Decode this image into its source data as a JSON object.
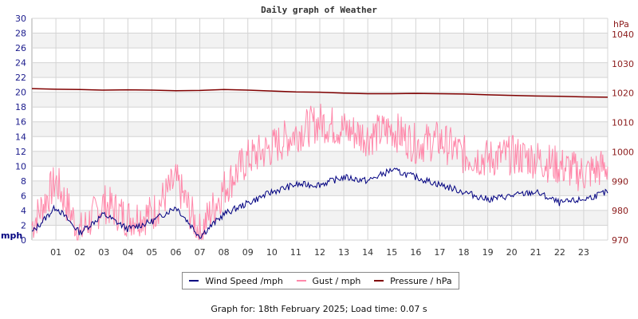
{
  "chart_data": {
    "type": "line",
    "title": "Daily graph of Weather",
    "xlabel": "",
    "ylabel": "mph",
    "ylabel_right": "hPa",
    "ylim": [
      0,
      30
    ],
    "ylim_right": [
      970,
      1045
    ],
    "yticks": [
      0,
      2,
      4,
      6,
      8,
      10,
      12,
      14,
      16,
      18,
      20,
      22,
      24,
      26,
      28,
      30
    ],
    "yticks_right": [
      970,
      980,
      990,
      1000,
      1010,
      1020,
      1030,
      1040
    ],
    "x_tick_labels": [
      "01",
      "02",
      "03",
      "04",
      "05",
      "06",
      "07",
      "08",
      "09",
      "10",
      "11",
      "12",
      "13",
      "14",
      "15",
      "16",
      "17",
      "18",
      "19",
      "20",
      "21",
      "22",
      "23"
    ],
    "grid": true,
    "legend_position": "bottom",
    "x": [
      0,
      1,
      2,
      3,
      4,
      5,
      6,
      7,
      8,
      9,
      10,
      11,
      12,
      13,
      14,
      15,
      16,
      17,
      18,
      19,
      20,
      21,
      22,
      23,
      24
    ],
    "series": [
      {
        "name": "Wind Speed /mph",
        "color": "#000080",
        "axis": "left",
        "values": [
          1.0,
          4.5,
          1.0,
          3.5,
          1.5,
          2.5,
          4.5,
          0.5,
          3.5,
          5.0,
          6.5,
          7.5,
          7.5,
          8.5,
          8.0,
          9.5,
          8.5,
          7.5,
          6.5,
          5.5,
          6.0,
          6.5,
          5.0,
          5.5,
          6.5
        ]
      },
      {
        "name": "Gust / mph",
        "color": "#ff88aa",
        "axis": "left",
        "values": [
          2.0,
          8.0,
          1.0,
          5.0,
          3.0,
          3.5,
          8.0,
          1.0,
          7.0,
          11.0,
          12.5,
          14.5,
          16.0,
          15.0,
          14.0,
          15.0,
          13.0,
          13.5,
          11.5,
          11.0,
          11.5,
          11.0,
          10.0,
          9.0,
          10.0
        ]
      },
      {
        "name": "Pressure / hPa",
        "color": "#800000",
        "axis": "right",
        "values": [
          1021.5,
          1021.3,
          1021.2,
          1021.0,
          1021.1,
          1021.0,
          1020.8,
          1020.9,
          1021.2,
          1021.0,
          1020.7,
          1020.4,
          1020.3,
          1020.0,
          1019.8,
          1019.8,
          1019.9,
          1019.8,
          1019.7,
          1019.4,
          1019.2,
          1019.0,
          1018.9,
          1018.7,
          1018.6
        ]
      }
    ]
  },
  "header": {
    "title": "Daily graph of Weather"
  },
  "axes": {
    "left_unit": "mph",
    "right_unit": "hPa"
  },
  "legend": {
    "items": [
      {
        "label": "Wind Speed /mph",
        "color": "#000080"
      },
      {
        "label": "Gust / mph",
        "color": "#ff88aa"
      },
      {
        "label": "Pressure / hPa",
        "color": "#800000"
      }
    ]
  },
  "footer": {
    "text": "Graph for: 18th February 2025; Load time: 0.07 s"
  },
  "colors": {
    "left_axis_text": "#1a1a8c",
    "right_axis_text": "#8b1a1a",
    "x_axis_text": "#333333",
    "band_gray": "#f2f2f2",
    "grid": "#d4d4d4"
  }
}
